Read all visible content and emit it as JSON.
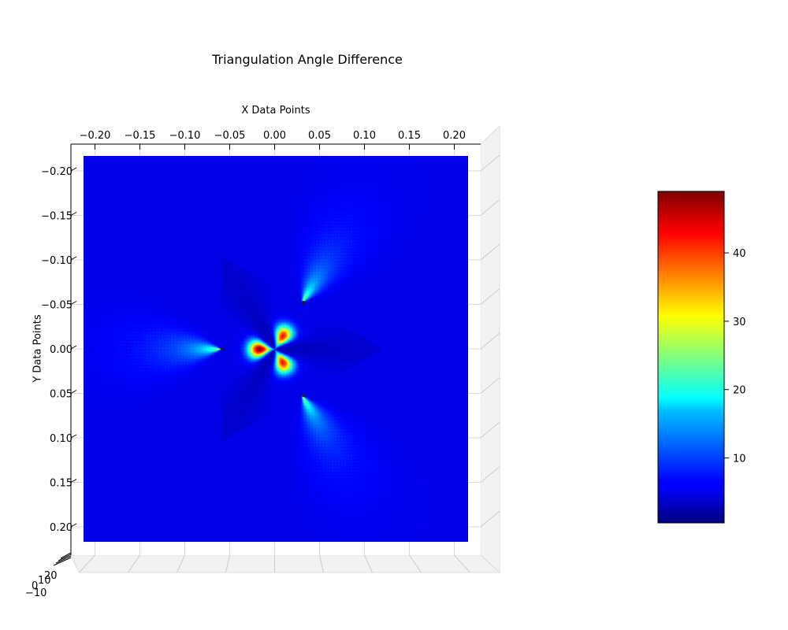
{
  "chart_data": {
    "type": "heatmap",
    "view": "3d-surface-top-down",
    "title": "Triangulation Angle Difference",
    "xlabel": "X Data Points",
    "ylabel": "Y Data Points",
    "x_ticks": [
      "−0.20",
      "−0.15",
      "−0.10",
      "−0.05",
      "0.00",
      "0.05",
      "0.10",
      "0.15",
      "0.20"
    ],
    "y_ticks": [
      "−0.20",
      "−0.15",
      "−0.10",
      "−0.05",
      "0.00",
      "0.05",
      "0.10",
      "0.15",
      "0.20"
    ],
    "z_ticks": [
      "−10",
      "0",
      "10",
      "20"
    ],
    "xlim": [
      -0.22,
      0.22
    ],
    "ylim": [
      -0.22,
      0.22
    ],
    "grid": true,
    "colormap": "jet",
    "color_range": [
      0.5,
      49
    ],
    "colorbar_ticks": [
      "10",
      "20",
      "30",
      "40"
    ],
    "colorbar_tick_values": [
      10,
      20,
      30,
      40
    ],
    "background_value": 5,
    "cameras": [
      {
        "x": -0.06,
        "y": 0.0
      },
      {
        "x": 0.03,
        "y": -0.052
      },
      {
        "x": 0.03,
        "y": 0.052
      }
    ],
    "peak_lobes": [
      {
        "direction_deg": 180,
        "peak_value": 48
      },
      {
        "direction_deg": -60,
        "peak_value": 40
      },
      {
        "direction_deg": 60,
        "peak_value": 40
      }
    ]
  }
}
